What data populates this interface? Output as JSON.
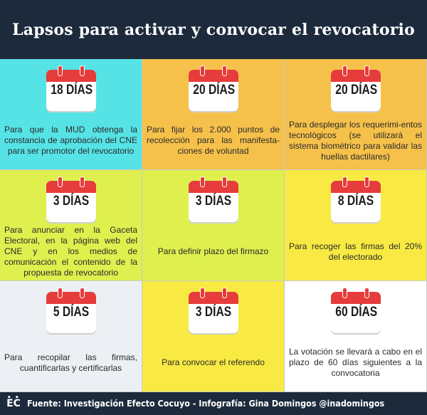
{
  "header": {
    "title": "Lapsos para activar y convocar el revocatorio"
  },
  "colors": {
    "cyan": "#56e3e6",
    "orange": "#f6c14b",
    "lime": "#dfef4e",
    "yellow": "#f8ea42",
    "pale": "#eceff3",
    "white": "#ffffff",
    "calendar_red": "#e63c3c",
    "navy": "#1c2a3c"
  },
  "cells": [
    {
      "days": "18 DÍAS",
      "text": "Para que la MUD obtenga la constancia de aprobación del CNE para ser promotor del revocatorio",
      "color": "#56e3e6"
    },
    {
      "days": "20 DÍAS",
      "text": "Para fijar los 2.000 puntos de recolección para las manifesta-ciones de voluntad",
      "color": "#f6c14b"
    },
    {
      "days": "20 DÍAS",
      "text": "Para desplegar los requerimi-entos tecnológicos (se utilizará el sistema biométrico para validar las huellas dactilares)",
      "color": "#f6c14b"
    },
    {
      "days": "3 DÍAS",
      "text": "Para anunciar en la Gaceta Electoral, en la página web del CNE y en los medios de comunicación el contenido de la propuesta de revocatorio",
      "color": "#dfef4e"
    },
    {
      "days": "3 DÍAS",
      "text": "Para definir plazo del firmazo",
      "color": "#dfef4e"
    },
    {
      "days": "8 DÍAS",
      "text": "Para recoger las firmas del 20% del electorado",
      "color": "#f8ea42"
    },
    {
      "days": "5 DÍAS",
      "text": "Para recopilar las firmas, cuantificarlas y certificarlas",
      "color": "#eceff3"
    },
    {
      "days": "3 DÍAS",
      "text": "Para convocar el referendo",
      "color": "#f8ea42"
    },
    {
      "days": "60 DÍAS",
      "text": "La votación se llevará a cabo en el plazo de 60 días siguientes a la convocatoria",
      "color": "#ffffff"
    }
  ],
  "footer": {
    "logo": "EC",
    "text": "Fuente: Investigación Efecto Cocuyo - Infografía: Gina Domingos @inadomingos"
  }
}
